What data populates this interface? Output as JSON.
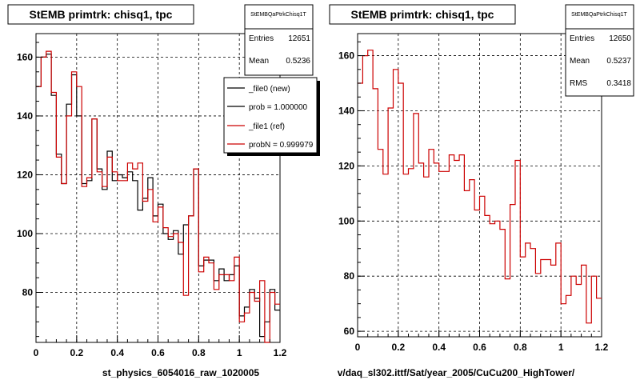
{
  "canvas": {
    "background": "#ffffff"
  },
  "colors": {
    "new": "#000000",
    "ref": "#cc0000",
    "grid": "#000000",
    "frame": "#000000",
    "stats_bg": "#ffffff",
    "legend_bg": "#ffffff"
  },
  "left": {
    "title": "StEMB primtrk: chisq1, tpc",
    "xlabel": "st_physics_6054016_raw_1020005",
    "stats": {
      "name": "StEMBQaPtrkChisq1T",
      "rows": [
        {
          "label": "Entries",
          "value": "12651"
        },
        {
          "label": "Mean",
          "value": "0.5236"
        }
      ]
    },
    "legend": [
      {
        "label": "_file0 (new)",
        "color": "#000000"
      },
      {
        "label": "prob = 1.000000",
        "color": "#000000"
      },
      {
        "label": "_file1 (ref)",
        "color": "#cc0000"
      },
      {
        "label": "probN = 0.999979",
        "color": "#cc0000"
      }
    ]
  },
  "right": {
    "title": "StEMB primtrk: chisq1, tpc",
    "xlabel": "v/daq_sl302.ittf/Sat/year_2005/CuCu200_HighTower/",
    "stats": {
      "name": "StEMBQaPtrkChisq1T",
      "rows": [
        {
          "label": "Entries",
          "value": "12650"
        },
        {
          "label": "Mean",
          "value": "0.5237"
        },
        {
          "label": "RMS",
          "value": "0.3418"
        }
      ]
    }
  },
  "footer_text": "",
  "chart_data": [
    {
      "type": "step",
      "title": "StEMB primtrk: chisq1, tpc",
      "xlabel": "st_physics_6054016_raw_1020005",
      "ylabel": "",
      "xlim": [
        0,
        1.2
      ],
      "ylim": [
        63,
        168
      ],
      "xticks": [
        0,
        0.2,
        0.4,
        0.6,
        0.8,
        1,
        1.2
      ],
      "xtick_labels": [
        "0",
        "0.2",
        "0.4",
        "0.6",
        "0.8",
        "1",
        "1.2"
      ],
      "yticks": [
        80,
        100,
        120,
        140,
        160
      ],
      "grid": true,
      "legend_position": "top-right",
      "bin_edges": [
        0,
        0.025,
        0.05,
        0.075,
        0.1,
        0.125,
        0.15,
        0.175,
        0.2,
        0.225,
        0.25,
        0.275,
        0.3,
        0.325,
        0.35,
        0.375,
        0.4,
        0.425,
        0.45,
        0.475,
        0.5,
        0.525,
        0.55,
        0.575,
        0.6,
        0.625,
        0.65,
        0.675,
        0.7,
        0.725,
        0.75,
        0.775,
        0.8,
        0.825,
        0.85,
        0.875,
        0.9,
        0.925,
        0.95,
        0.975,
        1.0,
        1.025,
        1.05,
        1.075,
        1.1,
        1.125,
        1.15,
        1.175,
        1.2
      ],
      "series": [
        {
          "name": "_file0 (new)",
          "color": "#000000",
          "values": [
            150,
            160,
            161,
            147,
            127,
            117,
            144,
            154,
            140,
            117,
            118,
            139,
            122,
            115,
            128,
            118,
            120,
            119,
            121,
            118,
            108,
            112,
            119,
            106,
            110,
            100,
            98,
            101,
            93,
            103,
            106,
            122,
            89,
            91,
            91,
            84,
            88,
            84,
            86,
            89,
            72,
            75,
            81,
            78,
            65,
            70,
            81,
            74
          ]
        },
        {
          "name": "_file1 (ref)",
          "color": "#cc0000",
          "values": [
            150,
            160,
            162,
            148,
            126,
            117,
            140,
            155,
            150,
            116,
            119,
            139,
            121,
            116,
            126,
            121,
            118,
            118,
            124,
            122,
            124,
            111,
            115,
            104,
            109,
            102,
            99,
            100,
            97,
            79,
            106,
            122,
            87,
            92,
            90,
            81,
            86,
            86,
            84,
            92,
            70,
            73,
            80,
            77,
            84,
            63,
            80,
            76
          ]
        }
      ]
    },
    {
      "type": "step",
      "title": "StEMB primtrk: chisq1, tpc",
      "xlabel": "v/daq_sl302.ittf/Sat/year_2005/CuCu200_HighTower/",
      "ylabel": "",
      "xlim": [
        0,
        1.2
      ],
      "ylim": [
        58,
        168
      ],
      "xticks": [
        0,
        0.2,
        0.4,
        0.6,
        0.8,
        1,
        1.2
      ],
      "xtick_labels": [
        "0",
        "0.2",
        "0.4",
        "0.6",
        "0.8",
        "1",
        "1.2"
      ],
      "yticks": [
        60,
        80,
        100,
        120,
        140,
        160
      ],
      "grid": true,
      "bin_edges": [
        0,
        0.025,
        0.05,
        0.075,
        0.1,
        0.125,
        0.15,
        0.175,
        0.2,
        0.225,
        0.25,
        0.275,
        0.3,
        0.325,
        0.35,
        0.375,
        0.4,
        0.425,
        0.45,
        0.475,
        0.5,
        0.525,
        0.55,
        0.575,
        0.6,
        0.625,
        0.65,
        0.675,
        0.7,
        0.725,
        0.75,
        0.775,
        0.8,
        0.825,
        0.85,
        0.875,
        0.9,
        0.925,
        0.95,
        0.975,
        1.0,
        1.025,
        1.05,
        1.075,
        1.1,
        1.125,
        1.15,
        1.175,
        1.2
      ],
      "series": [
        {
          "name": "",
          "color": "#cc0000",
          "values": [
            150,
            160,
            162,
            148,
            126,
            117,
            141,
            155,
            150,
            117,
            119,
            139,
            121,
            116,
            126,
            121,
            118,
            118,
            124,
            122,
            124,
            111,
            115,
            104,
            109,
            102,
            99,
            100,
            97,
            79,
            106,
            122,
            87,
            92,
            90,
            81,
            86,
            86,
            84,
            92,
            70,
            73,
            80,
            77,
            84,
            63,
            80,
            72
          ]
        }
      ]
    }
  ]
}
